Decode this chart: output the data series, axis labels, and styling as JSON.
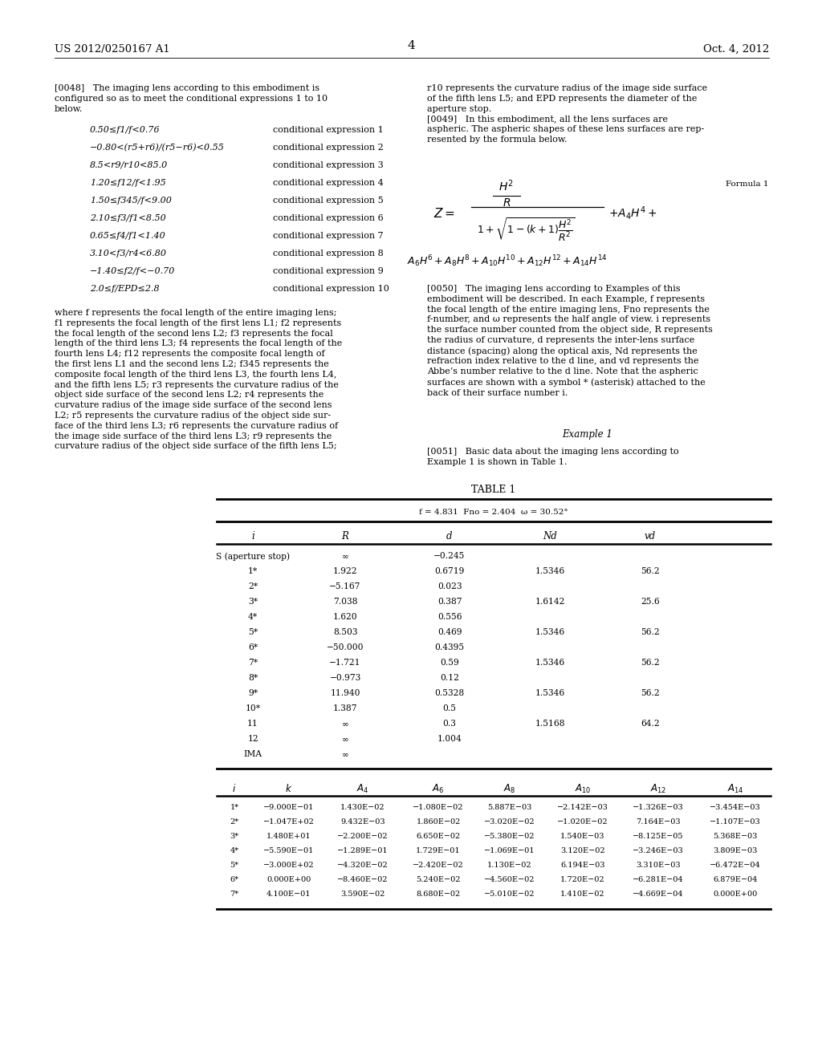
{
  "bg_color": "#ffffff",
  "header_left": "US 2012/0250167 A1",
  "header_right": "Oct. 4, 2012",
  "page_number": "4",
  "cond_expr": [
    [
      "0.50≤f1/f<0.76",
      "conditional expression 1"
    ],
    [
      "−0.80<(r5+r6)/(r5−r6)<0.55",
      "conditional expression 2"
    ],
    [
      "8.5<r9/r10<85.0",
      "conditional expression 3"
    ],
    [
      "1.20≤f12/f<1.95",
      "conditional expression 4"
    ],
    [
      "1.50≤f345/f<9.00",
      "conditional expression 5"
    ],
    [
      "2.10≤f3/f1<8.50",
      "conditional expression 6"
    ],
    [
      "0.65≤f4/f1<1.40",
      "conditional expression 7"
    ],
    [
      "3.10<f3/r4<6.80",
      "conditional expression 8"
    ],
    [
      "−1.40≤f2/f<−0.70",
      "conditional expression 9"
    ],
    [
      "2.0≤f/EPD≤2.8",
      "conditional expression 10"
    ]
  ],
  "table1_title": "TABLE 1",
  "table1_subtitle": "f = 4.831  Fno = 2.404  ω = 30.52°",
  "table1_upper_cols": [
    "i",
    "R",
    "d",
    "Nd",
    "vd"
  ],
  "table1_upper_data": [
    [
      "S (aperture stop)",
      "∞",
      "−0.245",
      "",
      ""
    ],
    [
      "1*",
      "1.922",
      "0.6719",
      "1.5346",
      "56.2"
    ],
    [
      "2*",
      "−5.167",
      "0.023",
      "",
      ""
    ],
    [
      "3*",
      "7.038",
      "0.387",
      "1.6142",
      "25.6"
    ],
    [
      "4*",
      "1.620",
      "0.556",
      "",
      ""
    ],
    [
      "5*",
      "8.503",
      "0.469",
      "1.5346",
      "56.2"
    ],
    [
      "6*",
      "−50.000",
      "0.4395",
      "",
      ""
    ],
    [
      "7*",
      "−1.721",
      "0.59",
      "1.5346",
      "56.2"
    ],
    [
      "8*",
      "−0.973",
      "0.12",
      "",
      ""
    ],
    [
      "9*",
      "11.940",
      "0.5328",
      "1.5346",
      "56.2"
    ],
    [
      "10*",
      "1.387",
      "0.5",
      "",
      ""
    ],
    [
      "11",
      "∞",
      "0.3",
      "1.5168",
      "64.2"
    ],
    [
      "12",
      "∞",
      "1.004",
      "",
      ""
    ],
    [
      "IMA",
      "∞",
      "",
      "",
      ""
    ]
  ],
  "table1_lower_cols_display": [
    "i",
    "k",
    "A4",
    "A6",
    "A8",
    "A10",
    "A12",
    "A14"
  ],
  "table1_lower_data": [
    [
      "1*",
      "−9.000E−01",
      "1.430E−02",
      "−1.080E−02",
      "5.887E−03",
      "−2.142E−03",
      "−1.326E−03",
      "−3.454E−03"
    ],
    [
      "2*",
      "−1.047E+02",
      "9.432E−03",
      "1.860E−02",
      "−3.020E−02",
      "−1.020E−02",
      "7.164E−03",
      "−1.107E−03"
    ],
    [
      "3*",
      "1.480E+01",
      "−2.200E−02",
      "6.650E−02",
      "−5.380E−02",
      "1.540E−03",
      "−8.125E−05",
      "5.368E−03"
    ],
    [
      "4*",
      "−5.590E−01",
      "−1.289E−01",
      "1.729E−01",
      "−1.069E−01",
      "3.120E−02",
      "−3.246E−03",
      "3.809E−03"
    ],
    [
      "5*",
      "−3.000E+02",
      "−4.320E−02",
      "−2.420E−02",
      "1.130E−02",
      "6.194E−03",
      "3.310E−03",
      "−6.472E−04"
    ],
    [
      "6*",
      "0.000E+00",
      "−8.460E−02",
      "5.240E−02",
      "−4.560E−02",
      "1.720E−02",
      "−6.281E−04",
      "6.879E−04"
    ],
    [
      "7*",
      "4.100E−01",
      "3.590E−02",
      "8.680E−02",
      "−5.010E−02",
      "1.410E−02",
      "−4.669E−04",
      "0.000E+00"
    ]
  ]
}
